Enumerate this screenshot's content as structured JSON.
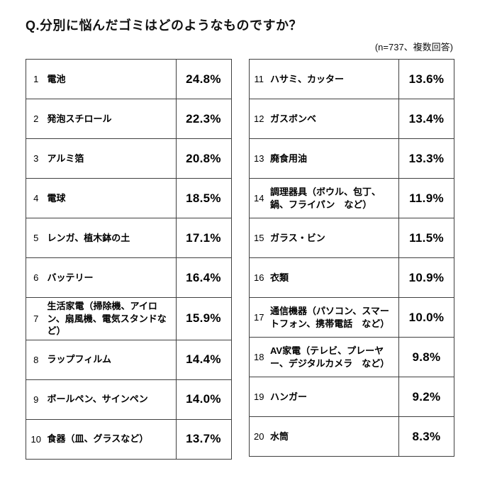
{
  "header": {
    "title": "Q.分別に悩んだゴミはどのようなものですか？",
    "note": "(n=737、複数回答)"
  },
  "tables": {
    "left": [
      {
        "rank": "1",
        "item": "電池",
        "percent": "24.8%"
      },
      {
        "rank": "2",
        "item": "発泡スチロール",
        "percent": "22.3%"
      },
      {
        "rank": "3",
        "item": "アルミ箔",
        "percent": "20.8%"
      },
      {
        "rank": "4",
        "item": "電球",
        "percent": "18.5%"
      },
      {
        "rank": "5",
        "item": "レンガ、植木鉢の土",
        "percent": "17.1%"
      },
      {
        "rank": "6",
        "item": "バッテリー",
        "percent": "16.4%"
      },
      {
        "rank": "7",
        "item": "生活家電（掃除機、アイロン、扇風機、電気スタンドなど）",
        "percent": "15.9%"
      },
      {
        "rank": "8",
        "item": "ラップフィルム",
        "percent": "14.4%"
      },
      {
        "rank": "9",
        "item": "ボールペン、サインペン",
        "percent": "14.0%"
      },
      {
        "rank": "10",
        "item": "食器（皿、グラスなど）",
        "percent": "13.7%"
      }
    ],
    "right": [
      {
        "rank": "11",
        "item": "ハサミ、カッター",
        "percent": "13.6%"
      },
      {
        "rank": "12",
        "item": "ガスボンベ",
        "percent": "13.4%"
      },
      {
        "rank": "13",
        "item": "廃食用油",
        "percent": "13.3%"
      },
      {
        "rank": "14",
        "item": "調理器具（ボウル、包丁、鍋、フライパン　など）",
        "percent": "11.9%"
      },
      {
        "rank": "15",
        "item": "ガラス・ビン",
        "percent": "11.5%"
      },
      {
        "rank": "16",
        "item": "衣類",
        "percent": "10.9%"
      },
      {
        "rank": "17",
        "item": "通信機器（パソコン、スマートフォン、携帯電話　など）",
        "percent": "10.0%"
      },
      {
        "rank": "18",
        "item": "AV家電（テレビ、プレーヤー、デジタルカメラ　など）",
        "percent": "9.8%"
      },
      {
        "rank": "19",
        "item": "ハンガー",
        "percent": "9.2%"
      },
      {
        "rank": "20",
        "item": "水筒",
        "percent": "8.3%"
      }
    ]
  },
  "chart_data": {
    "type": "table",
    "title": "Q.分別に悩んだゴミはどのようなものですか？",
    "note": "(n=737、複数回答)",
    "sample_size": 737,
    "columns": [
      "rank",
      "item",
      "percent"
    ],
    "categories": [
      "電池",
      "発泡スチロール",
      "アルミ箔",
      "電球",
      "レンガ、植木鉢の土",
      "バッテリー",
      "生活家電（掃除機、アイロン、扇風機、電気スタンドなど）",
      "ラップフィルム",
      "ボールペン、サインペン",
      "食器（皿、グラスなど）",
      "ハサミ、カッター",
      "ガスボンベ",
      "廃食用油",
      "調理器具（ボウル、包丁、鍋、フライパン　など）",
      "ガラス・ビン",
      "衣類",
      "通信機器（パソコン、スマートフォン、携帯電話　など）",
      "AV家電（テレビ、プレーヤー、デジタルカメラ　など）",
      "ハンガー",
      "水筒"
    ],
    "values": [
      24.8,
      22.3,
      20.8,
      18.5,
      17.1,
      16.4,
      15.9,
      14.4,
      14.0,
      13.7,
      13.6,
      13.4,
      13.3,
      11.9,
      11.5,
      10.9,
      10.0,
      9.8,
      9.2,
      8.3
    ],
    "unit": "%"
  }
}
